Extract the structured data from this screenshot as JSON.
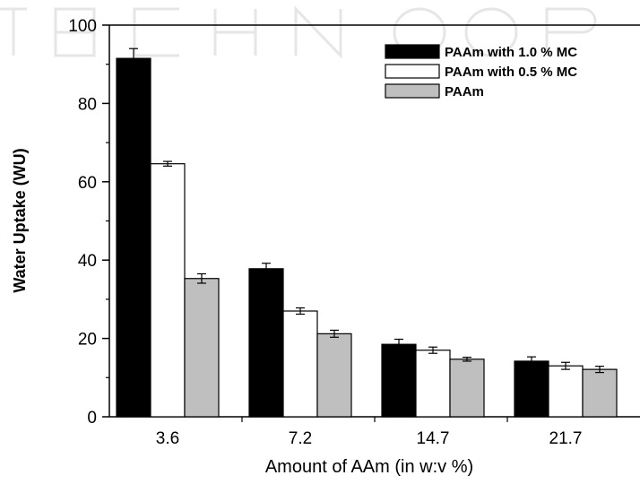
{
  "chart_data": {
    "type": "bar",
    "title": "",
    "xlabel": "Amount of AAm (in w:v %)",
    "ylabel": "Water Uptake (WU)",
    "categories": [
      "3.6",
      "7.2",
      "14.7",
      "21.7"
    ],
    "ylim": [
      0,
      100
    ],
    "yticks": [
      "0",
      "20",
      "40",
      "60",
      "80",
      "100"
    ],
    "grid": false,
    "legend_position": "top-right",
    "series": [
      {
        "name": "PAAm with 1.0 % MC",
        "color": "#000000",
        "values": [
          91.5,
          37.8,
          18.5,
          14.2
        ],
        "errors": [
          2.5,
          1.4,
          1.3,
          1.1
        ]
      },
      {
        "name": "PAAm with 0.5 % MC",
        "color": "#ffffff",
        "values": [
          64.6,
          27.0,
          17.0,
          13.0
        ],
        "errors": [
          0.6,
          0.8,
          0.8,
          0.9
        ]
      },
      {
        "name": "PAAm",
        "color": "#bfbfbf",
        "values": [
          35.3,
          21.2,
          14.7,
          12.1
        ],
        "errors": [
          1.2,
          0.9,
          0.5,
          0.8
        ]
      }
    ]
  }
}
